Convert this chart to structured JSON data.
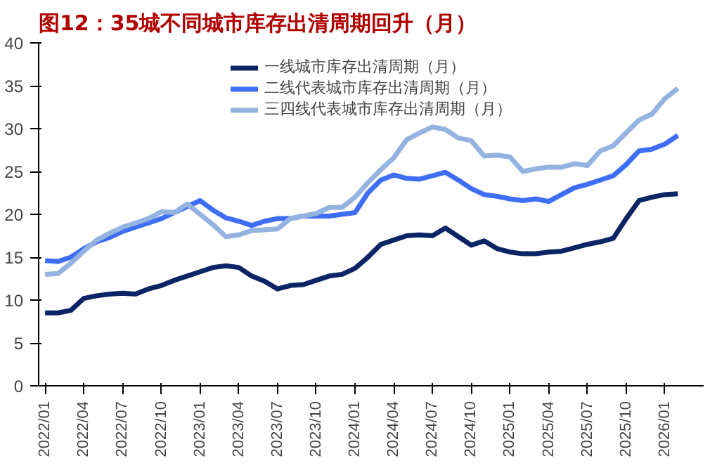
{
  "chart_data": {
    "type": "line",
    "title": "图12：35城不同城市库存出清周期回升（月）",
    "categories": [
      "2022/01",
      null,
      null,
      "2022/04",
      null,
      null,
      "2022/07",
      null,
      null,
      "2022/10",
      null,
      null,
      "2023/01",
      null,
      null,
      "2023/04",
      null,
      null,
      "2023/07",
      null,
      null,
      "2023/10",
      null,
      null,
      "2024/01",
      null,
      null,
      "2024/04",
      null,
      null,
      "2024/07",
      null,
      null,
      "2024/10",
      null,
      null,
      "2025/01",
      null,
      null,
      "2025/04",
      null,
      null,
      "2025/07",
      null,
      null,
      "2025/10",
      null,
      null,
      "2026/01",
      null
    ],
    "series": [
      {
        "name": "一线城市库存出清周期（月）",
        "color": "#0a2466",
        "values": [
          8.5,
          8.5,
          8.8,
          10.2,
          10.5,
          10.7,
          10.8,
          10.7,
          11.3,
          11.7,
          12.3,
          12.8,
          13.3,
          13.8,
          14.0,
          13.8,
          12.8,
          12.2,
          11.3,
          11.7,
          11.8,
          12.3,
          12.8,
          13.0,
          13.7,
          15.0,
          16.5,
          17.0,
          17.5,
          17.6,
          17.5,
          18.4,
          17.4,
          16.4,
          16.9,
          16.0,
          15.6,
          15.4,
          15.4,
          15.6,
          15.7,
          16.1,
          16.5,
          16.8,
          17.2,
          19.5,
          21.6,
          22.0,
          22.3,
          22.4
        ]
      },
      {
        "name": "二线代表城市库存出清周期（月）",
        "color": "#3d6ef5",
        "values": [
          14.6,
          14.5,
          15.0,
          16.0,
          16.8,
          17.3,
          18.0,
          18.5,
          19.0,
          19.5,
          20.2,
          20.9,
          21.6,
          20.5,
          19.6,
          19.2,
          18.7,
          19.2,
          19.5,
          19.5,
          19.8,
          19.8,
          19.8,
          20.0,
          20.2,
          22.5,
          24.0,
          24.6,
          24.2,
          24.1,
          24.5,
          24.9,
          24.0,
          23.0,
          22.3,
          22.1,
          21.8,
          21.6,
          21.8,
          21.5,
          22.3,
          23.1,
          23.5,
          24.0,
          24.5,
          25.8,
          27.4,
          27.6,
          28.2,
          29.2
        ]
      },
      {
        "name": "三四线代表城市库存出清周期（月）",
        "color": "#94b3e0",
        "values": [
          13.0,
          13.1,
          14.3,
          15.7,
          17.0,
          17.8,
          18.5,
          19.0,
          19.5,
          20.3,
          20.2,
          21.2,
          20.0,
          18.8,
          17.4,
          17.6,
          18.1,
          18.2,
          18.3,
          19.5,
          19.8,
          20.1,
          20.8,
          20.8,
          22.0,
          23.7,
          25.2,
          26.6,
          28.7,
          29.5,
          30.2,
          29.9,
          28.9,
          28.6,
          26.8,
          26.9,
          26.7,
          25.0,
          25.3,
          25.5,
          25.5,
          25.9,
          25.7,
          27.4,
          28.0,
          29.5,
          31.0,
          31.7,
          33.5,
          34.7
        ]
      }
    ],
    "ylim": [
      0,
      40
    ],
    "yticks": [
      0,
      5,
      10,
      15,
      20,
      25,
      30,
      35,
      40
    ],
    "grid": false,
    "legend": "top",
    "marker": "none",
    "line_style": "solid"
  }
}
